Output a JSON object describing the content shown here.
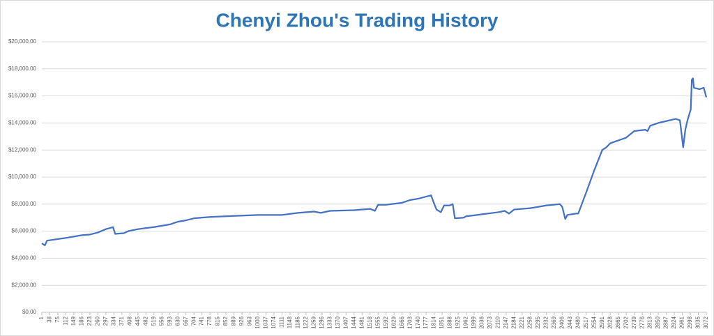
{
  "chart_data": {
    "type": "line",
    "title": "Chenyi Zhou's Trading History",
    "x": [
      1,
      15,
      25,
      112,
      186,
      223,
      260,
      297,
      330,
      340,
      380,
      400,
      445,
      519,
      556,
      593,
      630,
      667,
      704,
      778,
      852,
      926,
      1000,
      1111,
      1185,
      1259,
      1290,
      1333,
      1444,
      1518,
      1540,
      1555,
      1592,
      1666,
      1703,
      1740,
      1800,
      1810,
      1825,
      1845,
      1860,
      1885,
      1900,
      1910,
      1950,
      1962,
      1990,
      2036,
      2110,
      2140,
      2160,
      2184,
      2258,
      2332,
      2395,
      2406,
      2420,
      2430,
      2470,
      2480,
      2520,
      2554,
      2591,
      2610,
      2628,
      2700,
      2739,
      2790,
      2800,
      2813,
      2850,
      2930,
      2950,
      2965,
      2975,
      2985,
      3000,
      3005,
      3010,
      3015,
      3040,
      3060,
      3072
    ],
    "values": [
      5100,
      4950,
      5300,
      5500,
      5700,
      5750,
      5900,
      6150,
      6300,
      5800,
      5850,
      6000,
      6150,
      6300,
      6400,
      6500,
      6700,
      6800,
      6950,
      7050,
      7100,
      7150,
      7200,
      7200,
      7350,
      7450,
      7350,
      7500,
      7550,
      7650,
      7500,
      7950,
      7950,
      8100,
      8300,
      8400,
      8650,
      8200,
      7600,
      7400,
      7900,
      7900,
      8000,
      6950,
      7000,
      7100,
      7150,
      7250,
      7400,
      7500,
      7300,
      7600,
      7700,
      7900,
      8000,
      7800,
      6900,
      7200,
      7300,
      7300,
      9000,
      10500,
      12000,
      12200,
      12500,
      12900,
      13400,
      13500,
      13400,
      13800,
      14000,
      14300,
      14200,
      12200,
      13500,
      14200,
      15000,
      17200,
      17300,
      16600,
      16500,
      16600,
      15900
    ],
    "color": "#4472c4",
    "xlim": [
      1,
      3072
    ],
    "xticks": [
      1,
      38,
      75,
      112,
      149,
      186,
      223,
      260,
      297,
      334,
      371,
      408,
      445,
      482,
      519,
      556,
      593,
      630,
      667,
      704,
      741,
      778,
      815,
      852,
      889,
      926,
      963,
      1000,
      1037,
      1074,
      1111,
      1148,
      1185,
      1222,
      1259,
      1296,
      1333,
      1370,
      1407,
      1444,
      1481,
      1518,
      1555,
      1592,
      1629,
      1666,
      1703,
      1740,
      1777,
      1814,
      1851,
      1888,
      1925,
      1962,
      1999,
      2036,
      2073,
      2110,
      2147,
      2184,
      2221,
      2258,
      2295,
      2332,
      2369,
      2406,
      2443,
      2480,
      2517,
      2554,
      2591,
      2628,
      2665,
      2702,
      2739,
      2776,
      2813,
      2850,
      2887,
      2924,
      2961,
      2998,
      3035,
      3072
    ],
    "ylim": [
      0,
      20000
    ],
    "yticks": [
      {
        "value": 0,
        "label": "$0.00"
      },
      {
        "value": 2000,
        "label": "$2,000.00"
      },
      {
        "value": 4000,
        "label": "$4,000.00"
      },
      {
        "value": 6000,
        "label": "$6,000.00"
      },
      {
        "value": 8000,
        "label": "$8,000.00"
      },
      {
        "value": 10000,
        "label": "$10,000.00"
      },
      {
        "value": 12000,
        "label": "$12,000.00"
      },
      {
        "value": 14000,
        "label": "$14,000.00"
      },
      {
        "value": 16000,
        "label": "$16,000.00"
      },
      {
        "value": 18000,
        "label": "$18,000.00"
      },
      {
        "value": 20000,
        "label": "$20,000.00"
      }
    ],
    "grid": true
  }
}
